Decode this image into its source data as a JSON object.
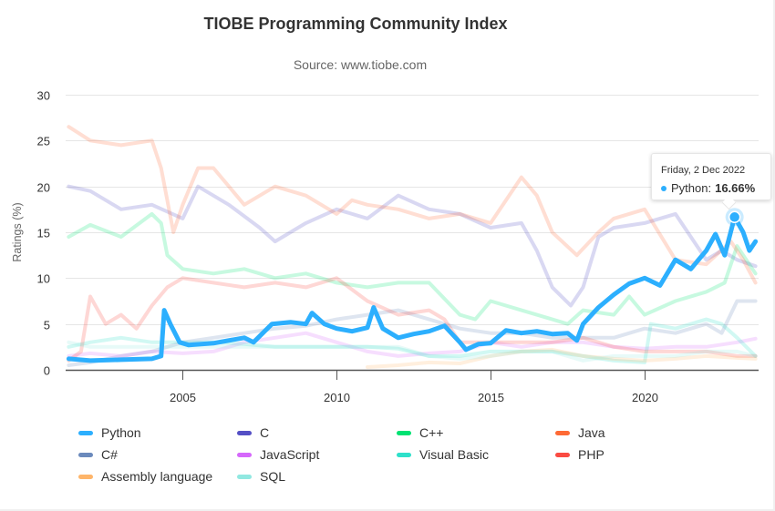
{
  "chart_data": {
    "type": "line",
    "title": "TIOBE Programming Community Index",
    "subtitle": "Source: www.tiobe.com",
    "xlabel": "",
    "ylabel": "Ratings (%)",
    "xlim": [
      2001.2,
      2023.7
    ],
    "ylim": [
      0,
      30
    ],
    "x_ticks": [
      "2005",
      "2010",
      "2015",
      "2020"
    ],
    "x_tick_values": [
      2005,
      2010,
      2015,
      2020
    ],
    "y_ticks": [
      "0",
      "5",
      "10",
      "15",
      "20",
      "25",
      "30"
    ],
    "y_tick_values": [
      0,
      5,
      10,
      15,
      20,
      25,
      30
    ],
    "grid": true,
    "legend_position": "bottom",
    "highlighted_series": "Python",
    "series": [
      {
        "name": "Python",
        "color": "#2caffe",
        "faded": false,
        "x": [
          2001.3,
          2002.0,
          2003.0,
          2004.0,
          2004.3,
          2004.4,
          2004.6,
          2004.9,
          2005.2,
          2006.0,
          2007.0,
          2007.3,
          2007.9,
          2008.5,
          2009.0,
          2009.2,
          2009.6,
          2010.0,
          2010.5,
          2011.0,
          2011.2,
          2011.5,
          2012.0,
          2012.5,
          2013.0,
          2013.5,
          2014.0,
          2014.2,
          2014.6,
          2015.0,
          2015.5,
          2016.0,
          2016.5,
          2017.0,
          2017.5,
          2017.8,
          2018.0,
          2018.5,
          2019.0,
          2019.5,
          2020.0,
          2020.5,
          2021.0,
          2021.5,
          2022.0,
          2022.3,
          2022.6,
          2022.92,
          2023.2,
          2023.4,
          2023.6
        ],
        "y": [
          1.2,
          1.0,
          1.1,
          1.2,
          1.5,
          6.5,
          5.0,
          3.0,
          2.7,
          2.9,
          3.5,
          3.0,
          5.0,
          5.2,
          5.0,
          6.2,
          5.0,
          4.5,
          4.2,
          4.6,
          6.8,
          4.5,
          3.5,
          3.9,
          4.2,
          4.8,
          3.0,
          2.2,
          2.8,
          2.9,
          4.3,
          4.0,
          4.2,
          3.9,
          4.0,
          3.2,
          5.0,
          6.8,
          8.2,
          9.4,
          10.0,
          9.2,
          12.0,
          11.0,
          13.0,
          14.8,
          12.5,
          16.66,
          15.0,
          13.0,
          14.0
        ]
      },
      {
        "name": "C",
        "color": "#544fc5",
        "faded": true,
        "x": [
          2001.3,
          2002.0,
          2003.0,
          2004.0,
          2005.0,
          2005.5,
          2006.5,
          2007.5,
          2008.0,
          2009.0,
          2010.0,
          2011.0,
          2012.0,
          2013.0,
          2014.0,
          2015.0,
          2016.0,
          2016.5,
          2017.0,
          2017.6,
          2018.0,
          2018.5,
          2019.0,
          2020.0,
          2021.0,
          2022.0,
          2022.5,
          2023.0,
          2023.6
        ],
        "y": [
          20.0,
          19.5,
          17.5,
          18.0,
          16.5,
          20.0,
          18.0,
          15.5,
          14.0,
          16.0,
          17.5,
          16.5,
          19.0,
          17.5,
          17.0,
          15.5,
          16.0,
          13.0,
          9.0,
          7.0,
          9.0,
          14.5,
          15.5,
          16.0,
          17.0,
          12.0,
          13.0,
          12.0,
          11.3
        ]
      },
      {
        "name": "C++",
        "color": "#00e272",
        "faded": true,
        "x": [
          2001.3,
          2002.0,
          2003.0,
          2004.0,
          2004.3,
          2004.5,
          2005.0,
          2006.0,
          2007.0,
          2008.0,
          2009.0,
          2010.0,
          2011.0,
          2012.0,
          2013.0,
          2014.0,
          2014.5,
          2015.0,
          2016.0,
          2017.0,
          2017.5,
          2018.0,
          2019.0,
          2019.5,
          2020.0,
          2021.0,
          2022.0,
          2022.6,
          2023.0,
          2023.6
        ],
        "y": [
          14.5,
          15.8,
          14.5,
          17.0,
          16.0,
          12.5,
          11.0,
          10.5,
          11.0,
          10.0,
          10.5,
          9.5,
          9.0,
          9.5,
          9.5,
          6.0,
          5.5,
          7.5,
          6.5,
          5.5,
          5.0,
          6.5,
          6.0,
          8.0,
          6.0,
          7.5,
          8.5,
          9.5,
          13.5,
          10.5
        ]
      },
      {
        "name": "Java",
        "color": "#fe6a35",
        "faded": true,
        "x": [
          2001.3,
          2002.0,
          2003.0,
          2004.0,
          2004.3,
          2004.7,
          2005.0,
          2005.5,
          2006.0,
          2007.0,
          2008.0,
          2009.0,
          2010.0,
          2010.5,
          2011.0,
          2012.0,
          2013.0,
          2014.0,
          2015.0,
          2016.0,
          2016.5,
          2017.0,
          2017.8,
          2018.5,
          2019.0,
          2020.0,
          2021.0,
          2022.0,
          2022.8,
          2023.2,
          2023.6
        ],
        "y": [
          26.5,
          25.0,
          24.5,
          25.0,
          22.0,
          15.0,
          18.0,
          22.0,
          22.0,
          18.0,
          20.0,
          19.0,
          17.0,
          18.5,
          18.0,
          17.5,
          16.5,
          17.0,
          16.0,
          21.0,
          19.0,
          15.0,
          12.5,
          15.0,
          16.5,
          17.5,
          12.0,
          11.5,
          14.0,
          12.0,
          9.5
        ]
      },
      {
        "name": "C#",
        "color": "#6b8abc",
        "faded": true,
        "x": [
          2001.3,
          2002.0,
          2003.0,
          2004.0,
          2005.0,
          2006.0,
          2007.0,
          2008.0,
          2009.0,
          2010.0,
          2011.0,
          2012.0,
          2013.0,
          2014.0,
          2015.0,
          2016.0,
          2017.0,
          2018.0,
          2019.0,
          2020.0,
          2021.0,
          2022.0,
          2022.5,
          2023.0,
          2023.6
        ],
        "y": [
          0.5,
          0.8,
          1.5,
          2.0,
          3.0,
          3.5,
          4.0,
          4.5,
          4.8,
          5.5,
          6.0,
          6.5,
          5.5,
          4.5,
          4.0,
          4.0,
          3.5,
          3.5,
          3.5,
          4.5,
          4.0,
          5.0,
          4.0,
          7.5,
          7.5
        ]
      },
      {
        "name": "JavaScript",
        "color": "#d568fb",
        "faded": true,
        "x": [
          2001.3,
          2002.0,
          2003.0,
          2004.0,
          2005.0,
          2006.0,
          2007.0,
          2008.0,
          2009.0,
          2010.0,
          2011.0,
          2012.0,
          2013.0,
          2014.0,
          2015.0,
          2016.0,
          2017.0,
          2018.0,
          2019.0,
          2020.0,
          2021.0,
          2022.0,
          2023.0,
          2023.6
        ],
        "y": [
          1.5,
          1.8,
          1.5,
          2.0,
          1.8,
          2.0,
          3.0,
          3.5,
          4.0,
          3.0,
          2.0,
          1.5,
          1.8,
          2.0,
          3.0,
          2.5,
          3.0,
          3.0,
          2.5,
          2.3,
          2.5,
          2.5,
          3.0,
          3.4
        ]
      },
      {
        "name": "Visual Basic",
        "color": "#2ee0ca",
        "faded": true,
        "x": [
          2001.3,
          2002.0,
          2003.0,
          2004.0,
          2005.0,
          2006.0,
          2007.0,
          2008.0,
          2009.0,
          2010.0,
          2011.0,
          2012.0,
          2013.0,
          2014.0,
          2015.0,
          2016.0,
          2017.0,
          2018.0,
          2019.0,
          2020.0,
          2020.2,
          2021.0,
          2022.0,
          2022.5,
          2023.0,
          2023.6
        ],
        "y": [
          2.5,
          3.0,
          3.5,
          3.0,
          3.0,
          3.0,
          2.8,
          2.5,
          2.5,
          2.5,
          2.5,
          2.3,
          1.5,
          1.5,
          2.0,
          2.0,
          2.0,
          1.5,
          1.0,
          0.8,
          5.0,
          4.5,
          5.5,
          5.0,
          3.5,
          1.5
        ]
      },
      {
        "name": "PHP",
        "color": "#fa4b42",
        "faded": true,
        "x": [
          2001.3,
          2001.7,
          2002.0,
          2002.5,
          2003.0,
          2003.5,
          2004.0,
          2004.5,
          2005.0,
          2006.0,
          2007.0,
          2008.0,
          2009.0,
          2010.0,
          2011.0,
          2012.0,
          2013.0,
          2013.5,
          2014.0,
          2015.0,
          2016.0,
          2017.0,
          2018.0,
          2019.0,
          2020.0,
          2021.0,
          2022.0,
          2023.0,
          2023.6
        ],
        "y": [
          1.0,
          2.0,
          8.0,
          5.0,
          6.0,
          4.5,
          7.0,
          9.0,
          10.0,
          9.5,
          9.0,
          9.5,
          9.0,
          10.0,
          7.5,
          6.0,
          6.5,
          5.5,
          3.0,
          3.0,
          3.0,
          3.0,
          3.5,
          2.5,
          2.0,
          2.0,
          2.0,
          1.5,
          1.5
        ]
      },
      {
        "name": "Assembly language",
        "color": "#feb56a",
        "faded": true,
        "x": [
          2011.0,
          2012.0,
          2013.0,
          2014.0,
          2015.0,
          2016.0,
          2017.0,
          2018.0,
          2019.0,
          2020.0,
          2021.0,
          2022.0,
          2023.0,
          2023.6
        ],
        "y": [
          0.3,
          0.5,
          0.8,
          0.7,
          1.5,
          2.0,
          2.2,
          1.5,
          1.2,
          1.0,
          1.2,
          1.5,
          1.3,
          1.2
        ]
      },
      {
        "name": "SQL",
        "color": "#91e8e1",
        "faded": true,
        "x": [
          2001.3,
          2002.0,
          2003.0,
          2004.0,
          2005.0,
          2006.0,
          2007.0,
          2008.0,
          2009.0,
          2010.0,
          2011.0,
          2012.0,
          2013.0,
          2014.0,
          2015.0,
          2016.0,
          2017.0,
          2018.0,
          2019.0,
          2020.0,
          2021.0,
          2022.0,
          2023.0,
          2023.6
        ],
        "y": [
          3.0,
          2.5,
          2.5,
          2.5,
          2.5,
          2.5,
          2.5,
          2.5,
          2.5,
          2.5,
          2.5,
          2.5,
          1.5,
          1.2,
          1.5,
          2.0,
          2.0,
          1.0,
          1.5,
          1.5,
          1.5,
          2.0,
          2.0,
          1.5
        ]
      }
    ],
    "tooltip": {
      "date": "Friday, 2 Dec 2022",
      "series": "Python",
      "label": "Python:",
      "value": "16.66%",
      "x": 2022.92,
      "y": 16.66
    }
  }
}
